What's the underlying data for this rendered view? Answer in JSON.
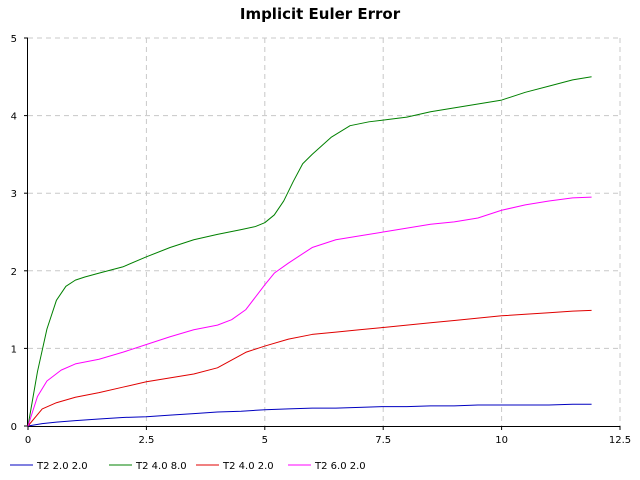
{
  "chart_data": {
    "type": "line",
    "title": "Implicit Euler Error",
    "xlabel": "",
    "ylabel": "",
    "xlim": [
      0,
      12.5
    ],
    "ylim": [
      0,
      5
    ],
    "xticks": [
      0,
      2.5,
      5,
      7.5,
      10,
      12.5
    ],
    "xtick_labels": [
      "0",
      "2.5",
      "5",
      "7.5",
      "10",
      "12.5"
    ],
    "yticks": [
      0,
      1,
      2,
      3,
      4,
      5
    ],
    "ytick_labels": [
      "0",
      "1",
      "2",
      "3",
      "4",
      "5"
    ],
    "grid": true,
    "legend_position": "bottom",
    "series": [
      {
        "name": "T2 2.0 2.0",
        "color": "#0000c0",
        "x": [
          0,
          0.3,
          0.6,
          1.0,
          1.5,
          2.0,
          2.5,
          3.0,
          3.5,
          4.0,
          4.5,
          5.0,
          5.5,
          6.0,
          6.5,
          7.0,
          7.5,
          8.0,
          8.5,
          9.0,
          9.5,
          10.0,
          10.5,
          11.0,
          11.5,
          11.9
        ],
        "y": [
          0,
          0.03,
          0.05,
          0.07,
          0.09,
          0.11,
          0.12,
          0.14,
          0.16,
          0.18,
          0.19,
          0.21,
          0.22,
          0.23,
          0.23,
          0.24,
          0.25,
          0.25,
          0.26,
          0.26,
          0.27,
          0.27,
          0.27,
          0.27,
          0.28,
          0.28
        ]
      },
      {
        "name": "T2 4.0 8.0",
        "color": "#008000",
        "x": [
          0,
          0.2,
          0.4,
          0.6,
          0.8,
          1.0,
          1.2,
          1.5,
          2.0,
          2.5,
          3.0,
          3.5,
          4.0,
          4.5,
          4.8,
          5.0,
          5.2,
          5.4,
          5.6,
          5.8,
          6.0,
          6.4,
          6.8,
          7.2,
          7.6,
          8.0,
          8.5,
          9.0,
          9.5,
          10.0,
          10.5,
          11.0,
          11.5,
          11.9
        ],
        "y": [
          0,
          0.7,
          1.25,
          1.62,
          1.8,
          1.88,
          1.92,
          1.97,
          2.05,
          2.18,
          2.3,
          2.4,
          2.47,
          2.53,
          2.57,
          2.62,
          2.72,
          2.9,
          3.15,
          3.38,
          3.5,
          3.72,
          3.87,
          3.92,
          3.95,
          3.98,
          4.05,
          4.1,
          4.15,
          4.2,
          4.3,
          4.38,
          4.46,
          4.5
        ]
      },
      {
        "name": "T2 4.0 2.0",
        "color": "#e00000",
        "x": [
          0,
          0.3,
          0.6,
          1.0,
          1.5,
          2.0,
          2.5,
          3.0,
          3.5,
          4.0,
          4.3,
          4.6,
          5.0,
          5.5,
          6.0,
          6.5,
          7.0,
          7.5,
          8.0,
          8.5,
          9.0,
          9.5,
          10.0,
          10.5,
          11.0,
          11.5,
          11.9
        ],
        "y": [
          0,
          0.22,
          0.3,
          0.37,
          0.43,
          0.5,
          0.57,
          0.62,
          0.67,
          0.75,
          0.85,
          0.95,
          1.03,
          1.12,
          1.18,
          1.21,
          1.24,
          1.27,
          1.3,
          1.33,
          1.36,
          1.39,
          1.42,
          1.44,
          1.46,
          1.48,
          1.49
        ]
      },
      {
        "name": "T2 6.0 2.0",
        "color": "#ff00ff",
        "x": [
          0,
          0.2,
          0.4,
          0.7,
          1.0,
          1.5,
          2.0,
          2.5,
          3.0,
          3.5,
          4.0,
          4.3,
          4.6,
          5.0,
          5.2,
          5.5,
          6.0,
          6.5,
          7.0,
          7.5,
          8.0,
          8.5,
          9.0,
          9.5,
          10.0,
          10.5,
          11.0,
          11.5,
          11.9
        ],
        "y": [
          0,
          0.38,
          0.58,
          0.72,
          0.8,
          0.86,
          0.95,
          1.05,
          1.15,
          1.24,
          1.3,
          1.37,
          1.5,
          1.82,
          1.97,
          2.1,
          2.3,
          2.4,
          2.45,
          2.5,
          2.55,
          2.6,
          2.63,
          2.68,
          2.78,
          2.85,
          2.9,
          2.94,
          2.95
        ]
      }
    ]
  }
}
